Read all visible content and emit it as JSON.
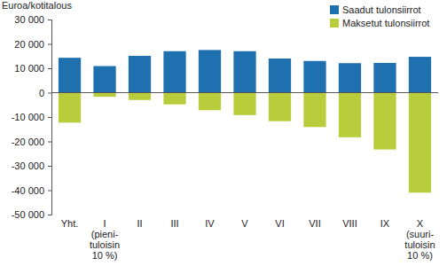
{
  "chart_data": {
    "type": "bar",
    "y_label": "Euroa/kotitalous",
    "categories": [
      "Yht.",
      "I\n(pieni-\ntuloisin\n10 %)",
      "II",
      "III",
      "IV",
      "V",
      "VI",
      "VII",
      "VIII",
      "IX",
      "X\n(suuri-\ntuloisin\n10 %)"
    ],
    "series": [
      {
        "name": "Saadut tulonsiirrot",
        "color": "#1f70ae",
        "values": [
          14300,
          10900,
          15100,
          17000,
          17500,
          17000,
          14000,
          13000,
          12100,
          12200,
          14700
        ]
      },
      {
        "name": "Maksetut tulonsiirrot",
        "color": "#b7cd3c",
        "values": [
          -12300,
          -1700,
          -3000,
          -4800,
          -7200,
          -9200,
          -11700,
          -14100,
          -18300,
          -23300,
          -41000
        ]
      }
    ],
    "ylim": [
      -50000,
      30000
    ],
    "yticks": [
      {
        "value": 30000,
        "label": "30 000"
      },
      {
        "value": 20000,
        "label": "20 000"
      },
      {
        "value": 10000,
        "label": "10 000"
      },
      0,
      {
        "value": -10000,
        "label": "-10 000"
      },
      {
        "value": -20000,
        "label": "-20 000"
      },
      {
        "value": -30000,
        "label": "-30 000"
      },
      {
        "value": -40000,
        "label": "-40 000"
      },
      {
        "value": -50000,
        "label": "-50 000"
      }
    ],
    "stacked": false,
    "grid": false,
    "legend": "top-right"
  }
}
